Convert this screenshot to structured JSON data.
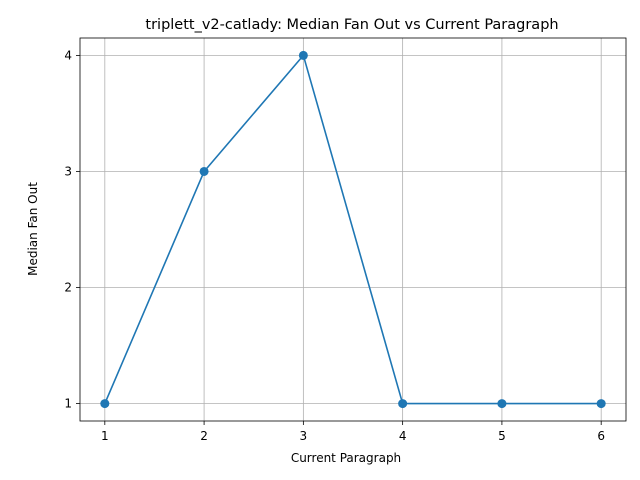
{
  "chart_data": {
    "type": "line",
    "title": "triplett_v2-catlady: Median Fan Out vs Current Paragraph",
    "xlabel": "Current Paragraph",
    "ylabel": "Median Fan Out",
    "x": [
      1,
      2,
      3,
      4,
      5,
      6
    ],
    "series": [
      {
        "values": [
          1,
          3,
          4,
          1,
          1,
          1
        ],
        "color": "#1f77b4",
        "marker": "circle"
      }
    ],
    "xticks": [
      "1",
      "2",
      "3",
      "4",
      "5",
      "6"
    ],
    "yticks": [
      "1",
      "2",
      "3",
      "4"
    ],
    "xlim": [
      0.75,
      6.25
    ],
    "ylim": [
      0.85,
      4.15
    ],
    "grid": true,
    "legend": "none"
  }
}
